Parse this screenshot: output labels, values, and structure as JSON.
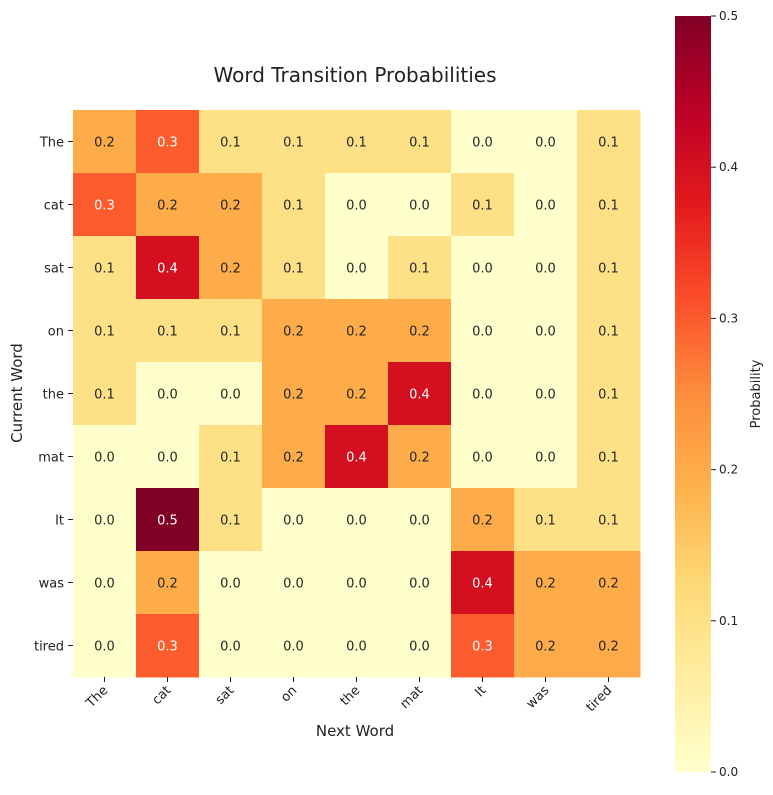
{
  "chart_data": {
    "type": "heatmap",
    "title": "Word Transition Probabilities",
    "xlabel": "Next Word",
    "ylabel": "Current Word",
    "x_categories": [
      "The",
      "cat",
      "sat",
      "on",
      "the",
      "mat",
      "It",
      "was",
      "tired"
    ],
    "y_categories": [
      "The",
      "cat",
      "sat",
      "on",
      "the",
      "mat",
      "It",
      "was",
      "tired"
    ],
    "values": [
      [
        0.2,
        0.3,
        0.1,
        0.1,
        0.1,
        0.1,
        0.0,
        0.0,
        0.1
      ],
      [
        0.3,
        0.2,
        0.2,
        0.1,
        0.0,
        0.0,
        0.1,
        0.0,
        0.1
      ],
      [
        0.1,
        0.4,
        0.2,
        0.1,
        0.0,
        0.1,
        0.0,
        0.0,
        0.1
      ],
      [
        0.1,
        0.1,
        0.1,
        0.2,
        0.2,
        0.2,
        0.0,
        0.0,
        0.1
      ],
      [
        0.1,
        0.0,
        0.0,
        0.2,
        0.2,
        0.4,
        0.0,
        0.0,
        0.1
      ],
      [
        0.0,
        0.0,
        0.1,
        0.2,
        0.4,
        0.2,
        0.0,
        0.0,
        0.1
      ],
      [
        0.0,
        0.5,
        0.1,
        0.0,
        0.0,
        0.0,
        0.2,
        0.1,
        0.1
      ],
      [
        0.0,
        0.2,
        0.0,
        0.0,
        0.0,
        0.0,
        0.4,
        0.2,
        0.2
      ],
      [
        0.0,
        0.3,
        0.0,
        0.0,
        0.0,
        0.0,
        0.3,
        0.2,
        0.2
      ]
    ],
    "colorbar": {
      "label": "Probability",
      "range": [
        0.0,
        0.5
      ],
      "ticks": [
        "0.0",
        "0.1",
        "0.2",
        "0.3",
        "0.4",
        "0.5"
      ],
      "colormap": "YlOrRd",
      "colors": [
        "#ffffcc",
        "#ffeda0",
        "#fed976",
        "#feb24c",
        "#fd8d3c",
        "#fc4e2a",
        "#e31a1c",
        "#bd0026",
        "#800026"
      ]
    },
    "grid": false,
    "legend": "right"
  }
}
